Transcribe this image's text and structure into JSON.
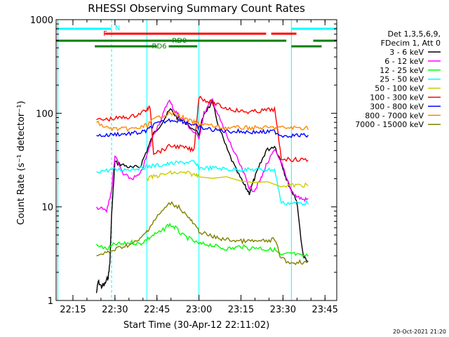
{
  "chart_data": {
    "type": "line",
    "title": "RHESSI Observing Summary Count Rates",
    "xlabel": "Start Time (30-Apr-12 22:11:02)",
    "ylabel": "Count Rate (s⁻¹ detector⁻¹)",
    "xlim": [
      22.15,
      23.82
    ],
    "ylim": [
      1,
      1000
    ],
    "yscale": "log",
    "x_ticks": [
      "22:15",
      "22:30",
      "22:45",
      "23:00",
      "23:15",
      "23:30",
      "23:45"
    ],
    "y_ticks": [
      "1",
      "10",
      "100",
      "1000"
    ],
    "legend_header": [
      "Det 1,3,5,6,9,",
      "FDecim 1, Att 0"
    ],
    "legend_position": "right",
    "series": [
      {
        "name": "3 - 6 keV",
        "color": "#000000",
        "points": [
          [
            22.39,
            1.2
          ],
          [
            22.4,
            1.6
          ],
          [
            22.42,
            1.4
          ],
          [
            22.44,
            1.5
          ],
          [
            22.46,
            1.8
          ],
          [
            22.47,
            2.5
          ],
          [
            22.48,
            8.0
          ],
          [
            22.5,
            30.0
          ],
          [
            22.55,
            28.0
          ],
          [
            22.6,
            26.0
          ],
          [
            22.65,
            27.0
          ],
          [
            22.69,
            40.0
          ],
          [
            22.73,
            60.0
          ],
          [
            22.78,
            80.0
          ],
          [
            22.83,
            110.0
          ],
          [
            22.87,
            90.0
          ],
          [
            22.92,
            80.0
          ],
          [
            23.0,
            60.0
          ],
          [
            23.03,
            100.0
          ],
          [
            23.08,
            130.0
          ],
          [
            23.12,
            70.0
          ],
          [
            23.17,
            40.0
          ],
          [
            23.22,
            25.0
          ],
          [
            23.27,
            17.0
          ],
          [
            23.3,
            14.0
          ],
          [
            23.33,
            20.0
          ],
          [
            23.37,
            30.0
          ],
          [
            23.4,
            40.0
          ],
          [
            23.45,
            45.0
          ],
          [
            23.49,
            30.0
          ],
          [
            23.52,
            20.0
          ],
          [
            23.55,
            15.0
          ],
          [
            23.58,
            12.0
          ],
          [
            23.62,
            3.0
          ],
          [
            23.65,
            2.5
          ]
        ]
      },
      {
        "name": "6 - 12 keV",
        "color": "#ff00ff",
        "points": [
          [
            22.39,
            10.0
          ],
          [
            22.45,
            9.0
          ],
          [
            22.48,
            15.0
          ],
          [
            22.5,
            35.0
          ],
          [
            22.55,
            22.0
          ],
          [
            22.6,
            20.0
          ],
          [
            22.65,
            22.0
          ],
          [
            22.69,
            35.0
          ],
          [
            22.73,
            60.0
          ],
          [
            22.78,
            90.0
          ],
          [
            22.82,
            140.0
          ],
          [
            22.85,
            110.0
          ],
          [
            22.88,
            95.0
          ],
          [
            22.92,
            80.0
          ],
          [
            22.96,
            65.0
          ],
          [
            23.0,
            55.0
          ],
          [
            23.03,
            100.0
          ],
          [
            23.08,
            140.0
          ],
          [
            23.12,
            90.0
          ],
          [
            23.17,
            55.0
          ],
          [
            23.22,
            35.0
          ],
          [
            23.27,
            22.0
          ],
          [
            23.3,
            16.0
          ],
          [
            23.33,
            15.0
          ],
          [
            23.37,
            20.0
          ],
          [
            23.4,
            28.0
          ],
          [
            23.45,
            40.0
          ],
          [
            23.49,
            30.0
          ],
          [
            23.52,
            20.0
          ],
          [
            23.55,
            15.0
          ],
          [
            23.58,
            13.0
          ],
          [
            23.62,
            12.0
          ],
          [
            23.65,
            12.0
          ]
        ]
      },
      {
        "name": "12 - 25 keV",
        "color": "#00ff00",
        "points": [
          [
            22.39,
            4.0
          ],
          [
            22.45,
            3.5
          ],
          [
            22.5,
            4.0
          ],
          [
            22.55,
            4.0
          ],
          [
            22.6,
            4.2
          ],
          [
            22.65,
            4.0
          ],
          [
            22.69,
            4.5
          ],
          [
            22.73,
            5.0
          ],
          [
            22.78,
            5.5
          ],
          [
            22.82,
            6.5
          ],
          [
            22.86,
            6.0
          ],
          [
            22.9,
            5.0
          ],
          [
            22.95,
            4.5
          ],
          [
            23.0,
            4.0
          ],
          [
            23.05,
            4.0
          ],
          [
            23.1,
            3.8
          ],
          [
            23.15,
            3.6
          ],
          [
            23.2,
            3.6
          ],
          [
            23.25,
            3.8
          ],
          [
            23.3,
            3.6
          ],
          [
            23.35,
            3.7
          ],
          [
            23.4,
            3.5
          ],
          [
            23.45,
            3.5
          ],
          [
            23.49,
            3.0
          ],
          [
            23.55,
            3.2
          ],
          [
            23.6,
            3.0
          ],
          [
            23.65,
            3.0
          ]
        ]
      },
      {
        "name": "25 - 50 keV",
        "color": "#00ffff",
        "points": [
          [
            22.39,
            24.0
          ],
          [
            22.45,
            24.5
          ],
          [
            22.5,
            25.0
          ],
          [
            22.55,
            25.0
          ],
          [
            22.6,
            25.5
          ],
          [
            22.65,
            26.0
          ],
          [
            22.69,
            27.0
          ],
          [
            22.73,
            27.5
          ],
          [
            22.78,
            28.0
          ],
          [
            22.83,
            29.0
          ],
          [
            22.88,
            29.5
          ],
          [
            22.93,
            30.0
          ],
          [
            22.97,
            30.0
          ],
          [
            23.0,
            26.0
          ],
          [
            23.05,
            26.0
          ],
          [
            23.1,
            26.0
          ],
          [
            23.15,
            25.5
          ],
          [
            23.2,
            25.0
          ],
          [
            23.25,
            25.0
          ],
          [
            23.3,
            25.0
          ],
          [
            23.35,
            25.0
          ],
          [
            23.4,
            25.0
          ],
          [
            23.45,
            25.0
          ],
          [
            23.49,
            11.0
          ],
          [
            23.55,
            11.0
          ],
          [
            23.6,
            11.0
          ],
          [
            23.65,
            11.0
          ]
        ]
      },
      {
        "name": "50 - 100 keV",
        "color": "#cccc00",
        "points": [
          [
            22.69,
            20.0
          ],
          [
            22.73,
            21.0
          ],
          [
            22.78,
            22.0
          ],
          [
            22.83,
            23.0
          ],
          [
            22.88,
            23.0
          ],
          [
            22.93,
            23.0
          ],
          [
            22.97,
            22.0
          ],
          [
            23.0,
            22.0
          ],
          [
            23.49,
            17.0
          ],
          [
            23.55,
            17.0
          ],
          [
            23.6,
            17.0
          ],
          [
            23.65,
            17.0
          ]
        ]
      },
      {
        "name": "100 - 300 keV",
        "color": "#ff0000",
        "points": [
          [
            22.39,
            85.0
          ],
          [
            22.45,
            86.0
          ],
          [
            22.5,
            88.0
          ],
          [
            22.55,
            90.0
          ],
          [
            22.6,
            92.0
          ],
          [
            22.65,
            100.0
          ],
          [
            22.69,
            110.0
          ],
          [
            22.71,
            115.0
          ],
          [
            22.73,
            38.0
          ],
          [
            22.78,
            40.0
          ],
          [
            22.83,
            45.0
          ],
          [
            22.88,
            44.0
          ],
          [
            22.93,
            42.0
          ],
          [
            22.97,
            40.0
          ],
          [
            23.0,
            150.0
          ],
          [
            23.05,
            135.0
          ],
          [
            23.1,
            125.0
          ],
          [
            23.15,
            115.0
          ],
          [
            23.2,
            110.0
          ],
          [
            23.25,
            105.0
          ],
          [
            23.3,
            103.0
          ],
          [
            23.35,
            105.0
          ],
          [
            23.4,
            108.0
          ],
          [
            23.45,
            110.0
          ],
          [
            23.49,
            33.0
          ],
          [
            23.55,
            32.0
          ],
          [
            23.6,
            32.0
          ],
          [
            23.65,
            32.0
          ]
        ]
      },
      {
        "name": "300 - 800 keV",
        "color": "#0000ff",
        "points": [
          [
            22.39,
            58.0
          ],
          [
            22.45,
            58.0
          ],
          [
            22.5,
            60.0
          ],
          [
            22.55,
            60.0
          ],
          [
            22.6,
            61.0
          ],
          [
            22.65,
            62.0
          ],
          [
            22.69,
            65.0
          ],
          [
            22.73,
            75.0
          ],
          [
            22.78,
            80.0
          ],
          [
            22.83,
            85.0
          ],
          [
            22.88,
            84.0
          ],
          [
            22.93,
            80.0
          ],
          [
            22.97,
            75.0
          ],
          [
            23.0,
            70.0
          ],
          [
            23.05,
            68.0
          ],
          [
            23.1,
            66.0
          ],
          [
            23.15,
            65.0
          ],
          [
            23.2,
            64.0
          ],
          [
            23.25,
            64.0
          ],
          [
            23.3,
            63.0
          ],
          [
            23.35,
            63.0
          ],
          [
            23.4,
            63.0
          ],
          [
            23.45,
            64.0
          ],
          [
            23.49,
            58.0
          ],
          [
            23.55,
            58.0
          ],
          [
            23.6,
            58.0
          ],
          [
            23.65,
            58.0
          ]
        ]
      },
      {
        "name": "800 - 7000 keV",
        "color": "#ff8800",
        "points": [
          [
            22.39,
            80.0
          ],
          [
            22.45,
            70.0
          ],
          [
            22.5,
            68.0
          ],
          [
            22.55,
            68.0
          ],
          [
            22.6,
            68.0
          ],
          [
            22.65,
            70.0
          ],
          [
            22.69,
            75.0
          ],
          [
            22.73,
            85.0
          ],
          [
            22.78,
            95.0
          ],
          [
            22.83,
            100.0
          ],
          [
            22.88,
            95.0
          ],
          [
            22.93,
            85.0
          ],
          [
            22.97,
            80.0
          ],
          [
            23.0,
            78.0
          ],
          [
            23.05,
            75.0
          ],
          [
            23.1,
            72.0
          ],
          [
            23.15,
            70.0
          ],
          [
            23.2,
            70.0
          ],
          [
            23.25,
            70.0
          ],
          [
            23.3,
            70.0
          ],
          [
            23.35,
            70.0
          ],
          [
            23.4,
            70.0
          ],
          [
            23.45,
            70.0
          ],
          [
            23.49,
            70.0
          ],
          [
            23.55,
            70.0
          ],
          [
            23.6,
            70.0
          ],
          [
            23.65,
            70.0
          ]
        ]
      },
      {
        "name": "7000 - 15000 keV",
        "color": "#808000",
        "points": [
          [
            22.39,
            3.0
          ],
          [
            22.45,
            3.2
          ],
          [
            22.5,
            3.5
          ],
          [
            22.55,
            3.8
          ],
          [
            22.6,
            4.0
          ],
          [
            22.65,
            4.5
          ],
          [
            22.69,
            5.5
          ],
          [
            22.73,
            7.0
          ],
          [
            22.78,
            9.0
          ],
          [
            22.83,
            11.0
          ],
          [
            22.88,
            10.0
          ],
          [
            22.93,
            8.0
          ],
          [
            22.97,
            6.5
          ],
          [
            23.0,
            5.5
          ],
          [
            23.05,
            5.0
          ],
          [
            23.1,
            4.7
          ],
          [
            23.15,
            4.5
          ],
          [
            23.2,
            4.4
          ],
          [
            23.25,
            4.3
          ],
          [
            23.3,
            4.3
          ],
          [
            23.35,
            4.3
          ],
          [
            23.4,
            4.3
          ],
          [
            23.45,
            4.5
          ],
          [
            23.49,
            2.8
          ],
          [
            23.55,
            2.5
          ],
          [
            23.6,
            2.6
          ],
          [
            23.65,
            2.5
          ]
        ]
      }
    ],
    "annotations": {
      "N": "N",
      "F": "F",
      "RD0": "RD0",
      "RD6": "RD6"
    },
    "bars": {
      "night": {
        "color": "#00ffff",
        "segments": [
          [
            22.15,
            22.48
          ],
          [
            23.55,
            23.82
          ]
        ]
      },
      "flare": {
        "color": "#ff0000",
        "segments": [
          [
            22.44,
            23.4
          ],
          [
            23.43,
            23.58
          ]
        ]
      },
      "rd0": {
        "color": "#008000",
        "segments": [
          [
            22.15,
            23.52
          ],
          [
            23.68,
            23.82
          ]
        ]
      },
      "rd6": {
        "color": "#008000",
        "segments": [
          [
            22.38,
            22.75
          ],
          [
            22.82,
            22.99
          ],
          [
            23.55,
            23.73
          ]
        ]
      }
    },
    "vlines": {
      "cyan_solid": [
        22.16,
        22.69,
        23.0,
        23.55
      ],
      "cyan_dashed": [
        22.48,
        23.82
      ]
    }
  },
  "footer_timestamp": "20-Oct-2021 21:20"
}
